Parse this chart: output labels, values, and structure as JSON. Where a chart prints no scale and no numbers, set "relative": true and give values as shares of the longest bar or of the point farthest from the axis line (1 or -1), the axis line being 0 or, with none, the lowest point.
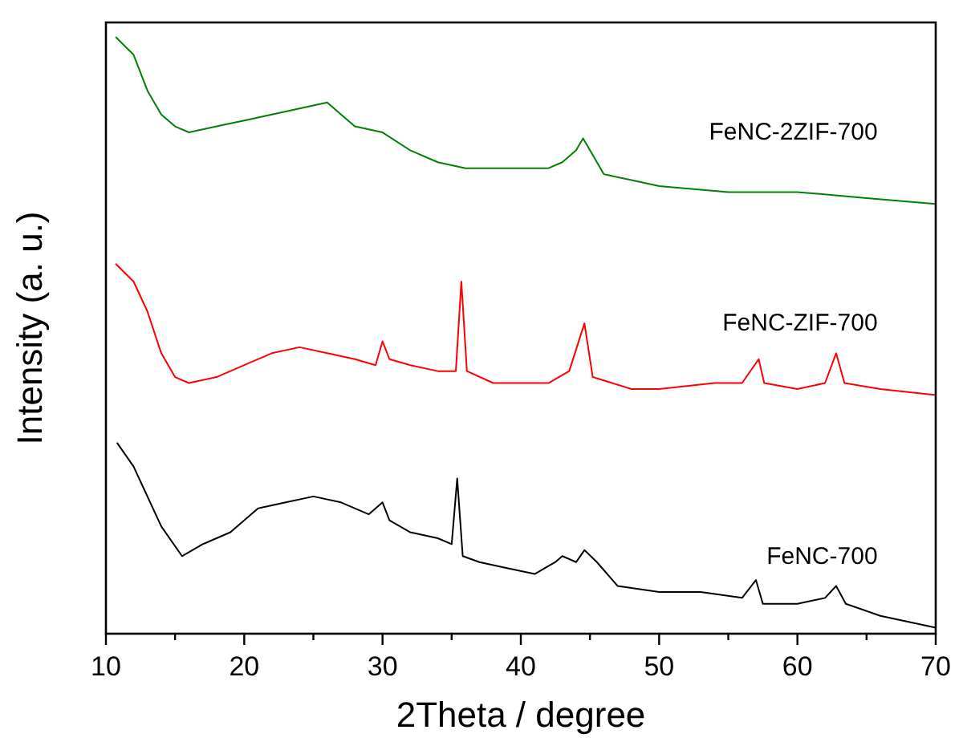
{
  "chart_data": {
    "type": "line",
    "relative": true,
    "xlabel": "2Theta / degree",
    "ylabel": "Intensity (a. u.)",
    "xlim": [
      10,
      70
    ],
    "xticks": [
      10,
      {
        "value": 15,
        "label": null
      },
      20,
      {
        "value": 25,
        "label": null
      },
      30,
      {
        "value": 35,
        "label": null
      },
      40,
      {
        "value": 45,
        "label": null
      },
      50,
      {
        "value": 55,
        "label": null
      },
      60,
      {
        "value": 65,
        "label": null
      },
      70
    ],
    "tick_labels": "x",
    "grid": false,
    "marker": "none",
    "line_style": "solid",
    "series": [
      {
        "name": "FeNC-2ZIF-700",
        "color": "#008000",
        "x": [
          10.7,
          12,
          13,
          14,
          15,
          16,
          18,
          20,
          22,
          24,
          26,
          27,
          28,
          30,
          32,
          34,
          36,
          38,
          40,
          42,
          43,
          44,
          44.5,
          45,
          46,
          48,
          50,
          55,
          60,
          65,
          70
        ],
        "values": [
          1.0,
          0.97,
          0.91,
          0.87,
          0.85,
          0.84,
          0.85,
          0.86,
          0.87,
          0.88,
          0.89,
          0.87,
          0.85,
          0.84,
          0.81,
          0.79,
          0.78,
          0.78,
          0.78,
          0.78,
          0.79,
          0.81,
          0.83,
          0.81,
          0.77,
          0.76,
          0.75,
          0.74,
          0.74,
          0.73,
          0.72
        ]
      },
      {
        "name": "FeNC-ZIF-700",
        "color": "#ff0000",
        "x": [
          10.7,
          12,
          13,
          14,
          15,
          16,
          18,
          20,
          22,
          24,
          26,
          28,
          29.5,
          30,
          30.5,
          32,
          34,
          35.3,
          35.7,
          36.1,
          38,
          40,
          42,
          43.5,
          44.6,
          45.2,
          48,
          50,
          54,
          56,
          57.2,
          57.6,
          60,
          62,
          62.8,
          63.4,
          66,
          70
        ],
        "values": [
          0.62,
          0.59,
          0.54,
          0.47,
          0.43,
          0.42,
          0.43,
          0.45,
          0.47,
          0.48,
          0.47,
          0.46,
          0.45,
          0.49,
          0.46,
          0.45,
          0.44,
          0.44,
          0.59,
          0.44,
          0.42,
          0.42,
          0.42,
          0.44,
          0.52,
          0.43,
          0.41,
          0.41,
          0.42,
          0.42,
          0.46,
          0.42,
          0.41,
          0.42,
          0.47,
          0.42,
          0.41,
          0.4
        ]
      },
      {
        "name": "FeNC-700",
        "color": "#000000",
        "x": [
          10.8,
          12,
          13,
          14,
          15.5,
          17,
          19,
          21,
          23,
          25,
          27,
          29,
          30,
          30.5,
          32,
          34,
          35,
          35.4,
          35.8,
          37,
          39,
          41,
          42.5,
          43,
          44,
          44.6,
          45.5,
          47,
          50,
          53,
          56,
          57,
          57.5,
          60,
          62,
          62.8,
          63.5,
          66,
          70
        ],
        "values": [
          0.32,
          0.28,
          0.23,
          0.18,
          0.13,
          0.15,
          0.17,
          0.21,
          0.22,
          0.23,
          0.22,
          0.2,
          0.22,
          0.19,
          0.17,
          0.16,
          0.15,
          0.26,
          0.13,
          0.12,
          0.11,
          0.1,
          0.12,
          0.13,
          0.12,
          0.14,
          0.12,
          0.08,
          0.07,
          0.07,
          0.06,
          0.09,
          0.05,
          0.05,
          0.06,
          0.08,
          0.05,
          0.03,
          0.01
        ]
      }
    ]
  }
}
